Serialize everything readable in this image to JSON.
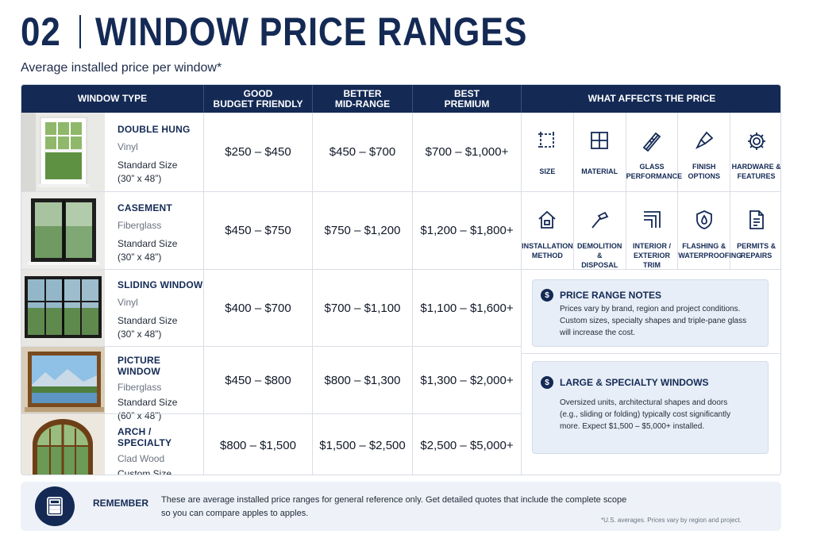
{
  "header": {
    "number": "02",
    "title": "WINDOW PRICE RANGES",
    "subtitle": "Average installed price per window*"
  },
  "columns": {
    "type": "WINDOW TYPE",
    "good": [
      "GOOD",
      "BUDGET FRIENDLY"
    ],
    "better": [
      "BETTER",
      "MID-RANGE"
    ],
    "best": [
      "BEST",
      "PREMIUM"
    ],
    "affects": "WHAT AFFECTS THE PRICE"
  },
  "rows": [
    {
      "name": "DOUBLE HUNG",
      "material": "Vinyl",
      "size1": "Standard Size",
      "size2": "(30” x 48”)",
      "good": "$250 – $450",
      "better": "$450 – $700",
      "best": "$700 – $1,000+"
    },
    {
      "name": "CASEMENT",
      "material": "Fiberglass",
      "size1": "Standard Size",
      "size2": "(30” x 48”)",
      "good": "$450 – $750",
      "better": "$750 – $1,200",
      "best": "$1,200 – $1,800+"
    },
    {
      "name": "SLIDING WINDOW",
      "material": "Vinyl",
      "size1": "Standard Size",
      "size2": "(30” x 48”)",
      "good": "$400 – $700",
      "better": "$700 – $1,100",
      "best": "$1,100 – $1,600+"
    },
    {
      "name": "PICTURE WINDOW",
      "material": "Fiberglass",
      "size1": "Standard Size",
      "size2": "(60” x 48”)",
      "good": "$450 – $800",
      "better": "$800 – $1,300",
      "best": "$1,300 – $2,000+"
    },
    {
      "name": "ARCH / SPECIALTY",
      "material": "Clad Wood",
      "size1": "Custom Size",
      "size2": "",
      "good": "$800 – $1,500",
      "better": "$1,500 – $2,500",
      "best": "$2,500 – $5,000+"
    }
  ],
  "factors_row1": [
    {
      "icon": "size-icon",
      "label": [
        "SIZE"
      ]
    },
    {
      "icon": "material-icon",
      "label": [
        "MATERIAL"
      ]
    },
    {
      "icon": "glass-icon",
      "label": [
        "GLASS",
        "PERFORMANCE"
      ]
    },
    {
      "icon": "brush-icon",
      "label": [
        "FINISH",
        "OPTIONS"
      ]
    },
    {
      "icon": "gear-icon",
      "label": [
        "HARDWARE &",
        "FEATURES"
      ]
    }
  ],
  "factors_row2": [
    {
      "icon": "house-icon",
      "label": [
        "INSTALLATION",
        "METHOD"
      ]
    },
    {
      "icon": "hammer-icon",
      "label": [
        "DEMOLITION &",
        "DISPOSAL"
      ]
    },
    {
      "icon": "trim-icon",
      "label": [
        "INTERIOR /",
        "EXTERIOR TRIM"
      ]
    },
    {
      "icon": "shield-drop-icon",
      "label": [
        "FLASHING &",
        "WATERPROOFING"
      ]
    },
    {
      "icon": "document-icon",
      "label": [
        "PERMITS &",
        "REPAIRS"
      ]
    }
  ],
  "notes": [
    {
      "icon": "$",
      "title": "PRICE RANGE NOTES",
      "lines": [
        "Prices vary by brand, region and project conditions.",
        "Custom sizes, specialty shapes and triple-pane glass",
        "will increase the cost."
      ]
    },
    {
      "icon": "$",
      "title": "LARGE & SPECIALTY WINDOWS",
      "lines": [
        "Oversized units, architectural shapes and doors",
        "(e.g., sliding or folding) typically cost significantly",
        "more. Expect $1,500 – $5,000+ installed."
      ]
    }
  ],
  "footer": {
    "label": "REMEMBER",
    "line1": "These are average installed price ranges for general reference only. Get detailed quotes that include the complete scope",
    "line2": "so you can compare apples to apples.",
    "footnote": "*U.S. averages. Prices vary by region and project."
  },
  "colors": {
    "navy": "#142a55",
    "note_bg": "#e8eef7",
    "footer_bg": "#eef2f8"
  }
}
